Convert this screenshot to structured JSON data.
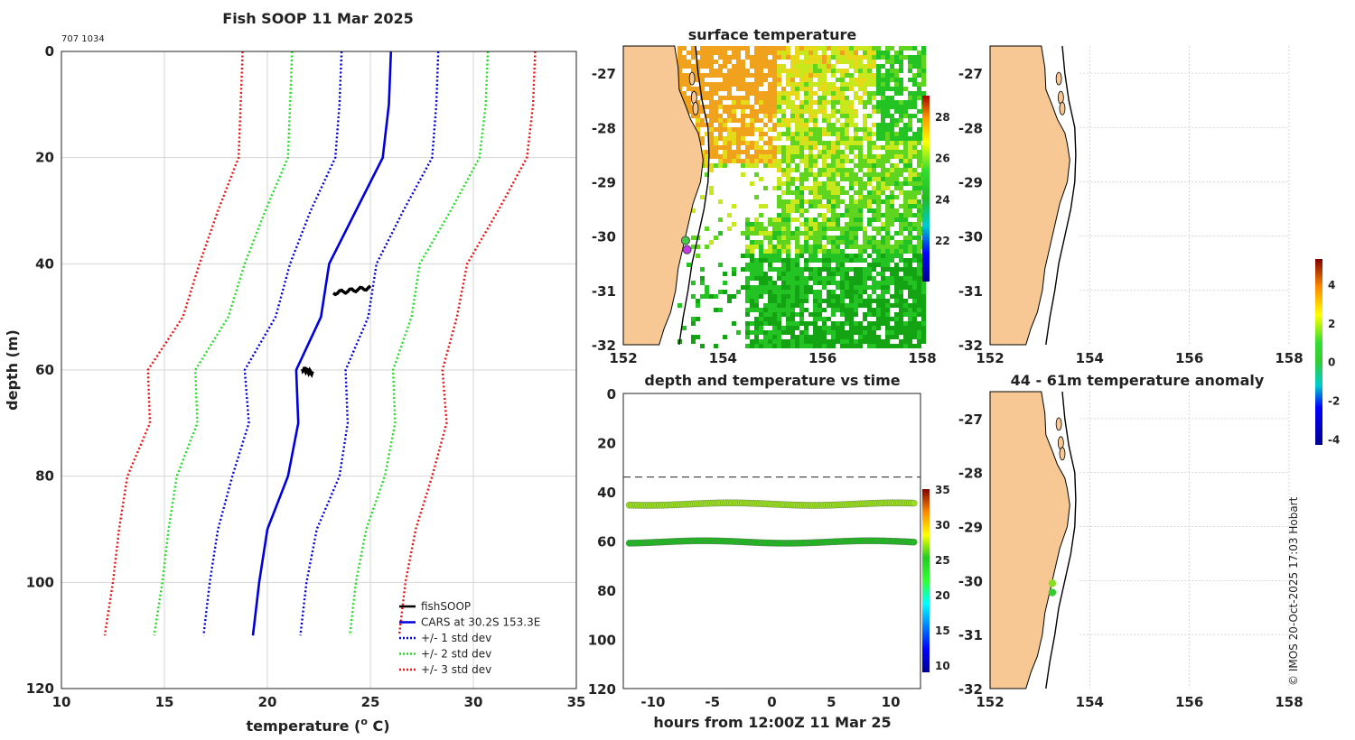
{
  "chart_data": [
    {
      "type": "line",
      "title": "Fish SOOP 11 Mar 2025",
      "corner_label": "707 1034",
      "xlabel": "temperature (",
      "xlabel_sup": "o",
      "xlabel_end": " C)",
      "ylabel": "depth (m)",
      "xlim": [
        10,
        35
      ],
      "ylim": [
        0,
        120
      ],
      "y_reversed": true,
      "grid": true,
      "xticks": [
        "10",
        "15",
        "20",
        "25",
        "30",
        "35"
      ],
      "yticks": [
        "0",
        "20",
        "40",
        "60",
        "80",
        "100",
        "120"
      ],
      "depths": [
        0,
        10,
        20,
        30,
        40,
        50,
        60,
        70,
        80,
        90,
        100,
        110
      ],
      "series": [
        {
          "name": "CARS at 30.2S 153.3E",
          "legend": "CARS at 30.2S 153.3E",
          "color": "#0000dd",
          "style": "solid",
          "values": [
            26.0,
            25.9,
            25.6,
            24.3,
            23.0,
            22.6,
            21.4,
            21.5,
            21.0,
            20.0,
            19.6,
            19.3
          ]
        },
        {
          "name": "cars_minus_1sd",
          "legend": "+/- 1 std dev",
          "color": "#0000dd",
          "style": "dotted",
          "values": [
            23.6,
            23.5,
            23.3,
            22.1,
            21.1,
            20.4,
            18.9,
            19.1,
            18.3,
            17.6,
            17.2,
            16.9
          ]
        },
        {
          "name": "cars_plus_1sd",
          "color": "#0000dd",
          "style": "dotted",
          "values": [
            28.3,
            28.2,
            28.0,
            26.6,
            25.3,
            24.9,
            23.8,
            23.9,
            23.5,
            22.4,
            21.9,
            21.6
          ]
        },
        {
          "name": "cars_minus_2sd",
          "legend": "+/- 2 std dev",
          "color": "#22dd22",
          "style": "dotted",
          "values": [
            21.2,
            21.1,
            21.0,
            19.9,
            18.9,
            18.1,
            16.5,
            16.6,
            15.6,
            15.2,
            14.9,
            14.5
          ]
        },
        {
          "name": "cars_plus_2sd",
          "color": "#22dd22",
          "style": "dotted",
          "values": [
            30.7,
            30.6,
            30.3,
            28.9,
            27.4,
            27.0,
            26.1,
            26.2,
            25.7,
            24.8,
            24.3,
            24.0
          ]
        },
        {
          "name": "cars_minus_3sd",
          "legend": "+/- 3 std dev",
          "color": "#ee1111",
          "style": "dotted",
          "values": [
            18.8,
            18.7,
            18.6,
            17.6,
            16.7,
            15.9,
            14.2,
            14.3,
            13.2,
            12.8,
            12.5,
            12.1
          ]
        },
        {
          "name": "cars_plus_3sd",
          "color": "#ee1111",
          "style": "dotted",
          "values": [
            33.0,
            32.9,
            32.6,
            31.2,
            29.7,
            29.2,
            28.5,
            28.7,
            28.0,
            27.2,
            26.7,
            26.4
          ]
        }
      ],
      "fishsoop": {
        "legend": "fishSOOP",
        "color": "#000000",
        "segments": [
          {
            "depth_start": 45.5,
            "depth_end": 44.5,
            "temp_start": 23.2,
            "temp_end": 25.0
          },
          {
            "depth_start": 59.8,
            "depth_end": 60.6,
            "temp_start": 21.7,
            "temp_end": 22.2
          }
        ]
      }
    },
    {
      "type": "heatmap",
      "title": "surface temperature",
      "xlim": [
        152,
        158
      ],
      "ylim": [
        -32,
        -26.5
      ],
      "xticks": [
        "152",
        "154",
        "156",
        "158"
      ],
      "yticks": [
        "-27",
        "-28",
        "-29",
        "-30",
        "-31",
        "-32"
      ],
      "colorbar": {
        "min": 20,
        "max": 29,
        "ticks": [
          "22",
          "24",
          "26",
          "28"
        ]
      },
      "markers": [
        {
          "lon": 153.25,
          "lat": -30.08,
          "color": "#44cc44"
        },
        {
          "lon": 153.28,
          "lat": -30.25,
          "color": "#cc33ee"
        }
      ]
    },
    {
      "type": "scatter",
      "title": "depth and temperature vs time",
      "xlabel": "hours from 12:00Z 11 Mar 25",
      "xlim": [
        -12.5,
        12.5
      ],
      "ylim": [
        0,
        120
      ],
      "y_reversed": true,
      "xticks": [
        "-10",
        "-5",
        "0",
        "5",
        "10"
      ],
      "yticks": [
        "0",
        "20",
        "40",
        "60",
        "80",
        "100",
        "120"
      ],
      "reference_line_depth": 34,
      "colorbar": {
        "min": 9,
        "max": 35,
        "ticks": [
          "10",
          "15",
          "20",
          "25",
          "30",
          "35"
        ]
      },
      "tracks": [
        {
          "name": "upper",
          "depth_mean": 45,
          "temperature": 24.3,
          "color": "#99e01e"
        },
        {
          "name": "lower",
          "depth_mean": 60.4,
          "temperature": 21.9,
          "color": "#22bb22"
        }
      ]
    },
    {
      "type": "scatter",
      "title": "44 - 61m temperature anomaly",
      "panel_top_label": "",
      "xlim": [
        152,
        158
      ],
      "ylim": [
        -32,
        -26.5
      ],
      "xticks": [
        "152",
        "154",
        "156",
        "158"
      ],
      "yticks": [
        "-27",
        "-28",
        "-29",
        "-30",
        "-31",
        "-32"
      ],
      "colorbar": {
        "min": -4.3,
        "max": 5.3,
        "ticks": [
          "4",
          "2",
          "0",
          "-2",
          "-4"
        ]
      },
      "markers": [
        {
          "lon": 153.25,
          "lat": -30.05,
          "color": "#88dd22"
        },
        {
          "lon": 153.25,
          "lat": -30.22,
          "color": "#33cc33"
        }
      ]
    }
  ],
  "top_right_panel": {
    "xticks": [
      "152",
      "154",
      "156",
      "158"
    ],
    "yticks": [
      "-27",
      "-28",
      "-29",
      "-30",
      "-31",
      "-32"
    ]
  },
  "credit": "© IMOS 20-Oct-2025 17:03 Hobart"
}
